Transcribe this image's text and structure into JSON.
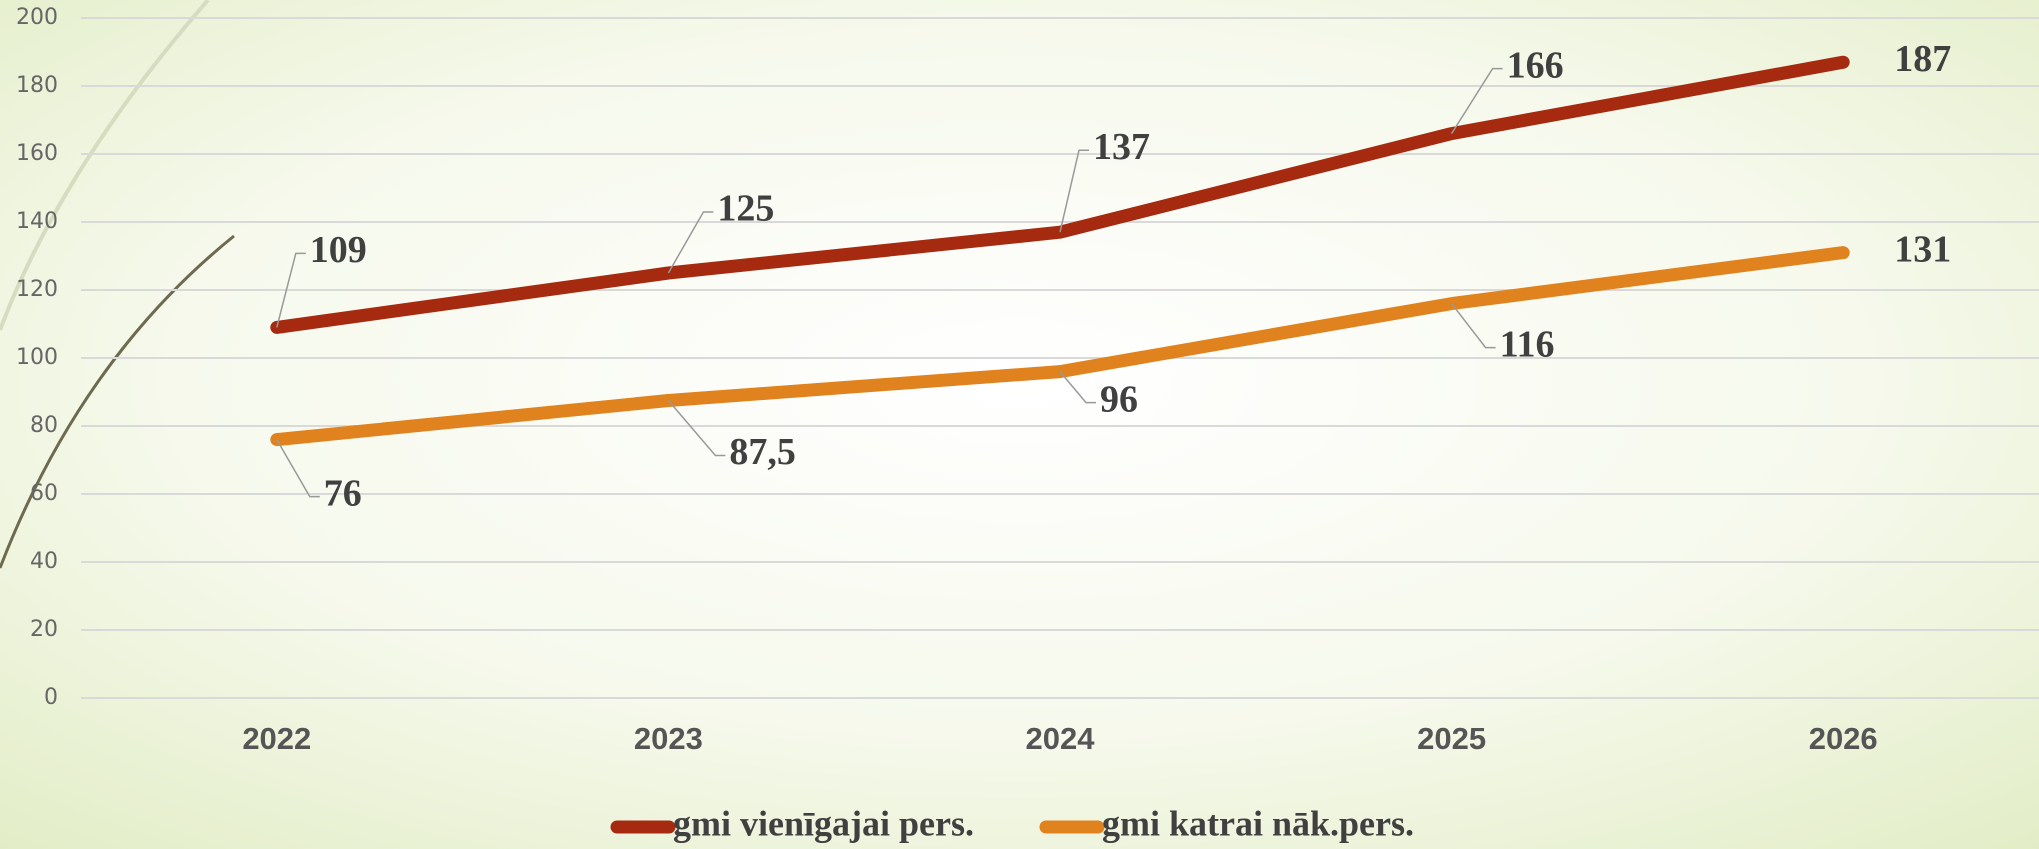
{
  "chart_data": {
    "type": "line",
    "categories": [
      "2022",
      "2023",
      "2024",
      "2025",
      "2026"
    ],
    "series": [
      {
        "name": "gmi vienīgajai pers.",
        "color": "#a52a0f",
        "values": [
          109,
          125,
          137,
          166,
          187
        ]
      },
      {
        "name": "gmi katrai nāk.pers.",
        "color": "#e0821e",
        "values": [
          76,
          87.5,
          96,
          116,
          131
        ],
        "value_labels": [
          "76",
          "87,5",
          "96",
          "116",
          "131"
        ]
      }
    ],
    "ylim": [
      0,
      200
    ],
    "yticks": [
      0,
      20,
      40,
      60,
      80,
      100,
      120,
      140,
      160,
      180,
      200
    ],
    "grid": true,
    "legend": "bottom"
  }
}
